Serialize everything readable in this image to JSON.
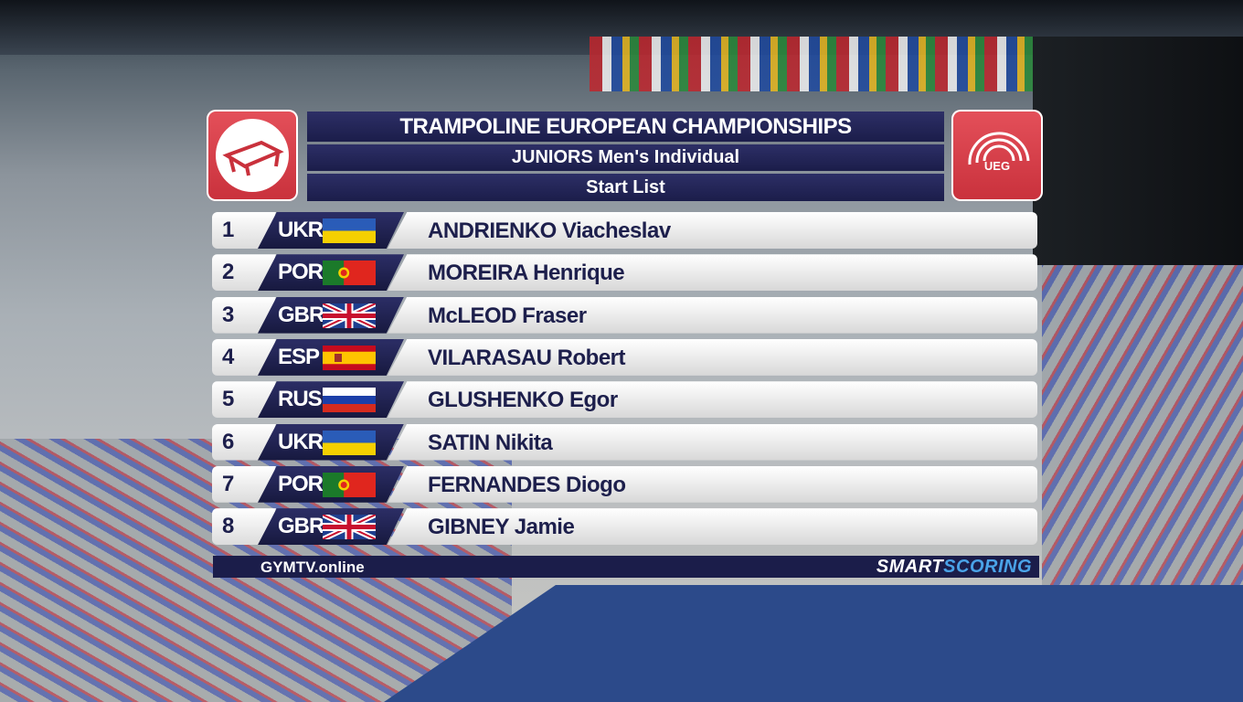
{
  "header": {
    "title": "TRAMPOLINE EUROPEAN CHAMPIONSHIPS",
    "subtitle": "JUNIORS Men's Individual",
    "list": "Start List",
    "logo": "UEG"
  },
  "rows": [
    {
      "rank": 1,
      "nation": "UKR",
      "name": "ANDRIENKO Viacheslav"
    },
    {
      "rank": 2,
      "nation": "POR",
      "name": "MOREIRA Henrique"
    },
    {
      "rank": 3,
      "nation": "GBR",
      "name": "McLEOD Fraser"
    },
    {
      "rank": 4,
      "nation": "ESP",
      "name": "VILARASAU Robert"
    },
    {
      "rank": 5,
      "nation": "RUS",
      "name": "GLUSHENKO Egor"
    },
    {
      "rank": 6,
      "nation": "UKR",
      "name": "SATIN Nikita"
    },
    {
      "rank": 7,
      "nation": "POR",
      "name": "FERNANDES Diogo"
    },
    {
      "rank": 8,
      "nation": "GBR",
      "name": "GIBNEY Jamie"
    }
  ],
  "footer": {
    "left": "GYMTV.online",
    "right_a": "SMART",
    "right_b": "SCORING"
  }
}
